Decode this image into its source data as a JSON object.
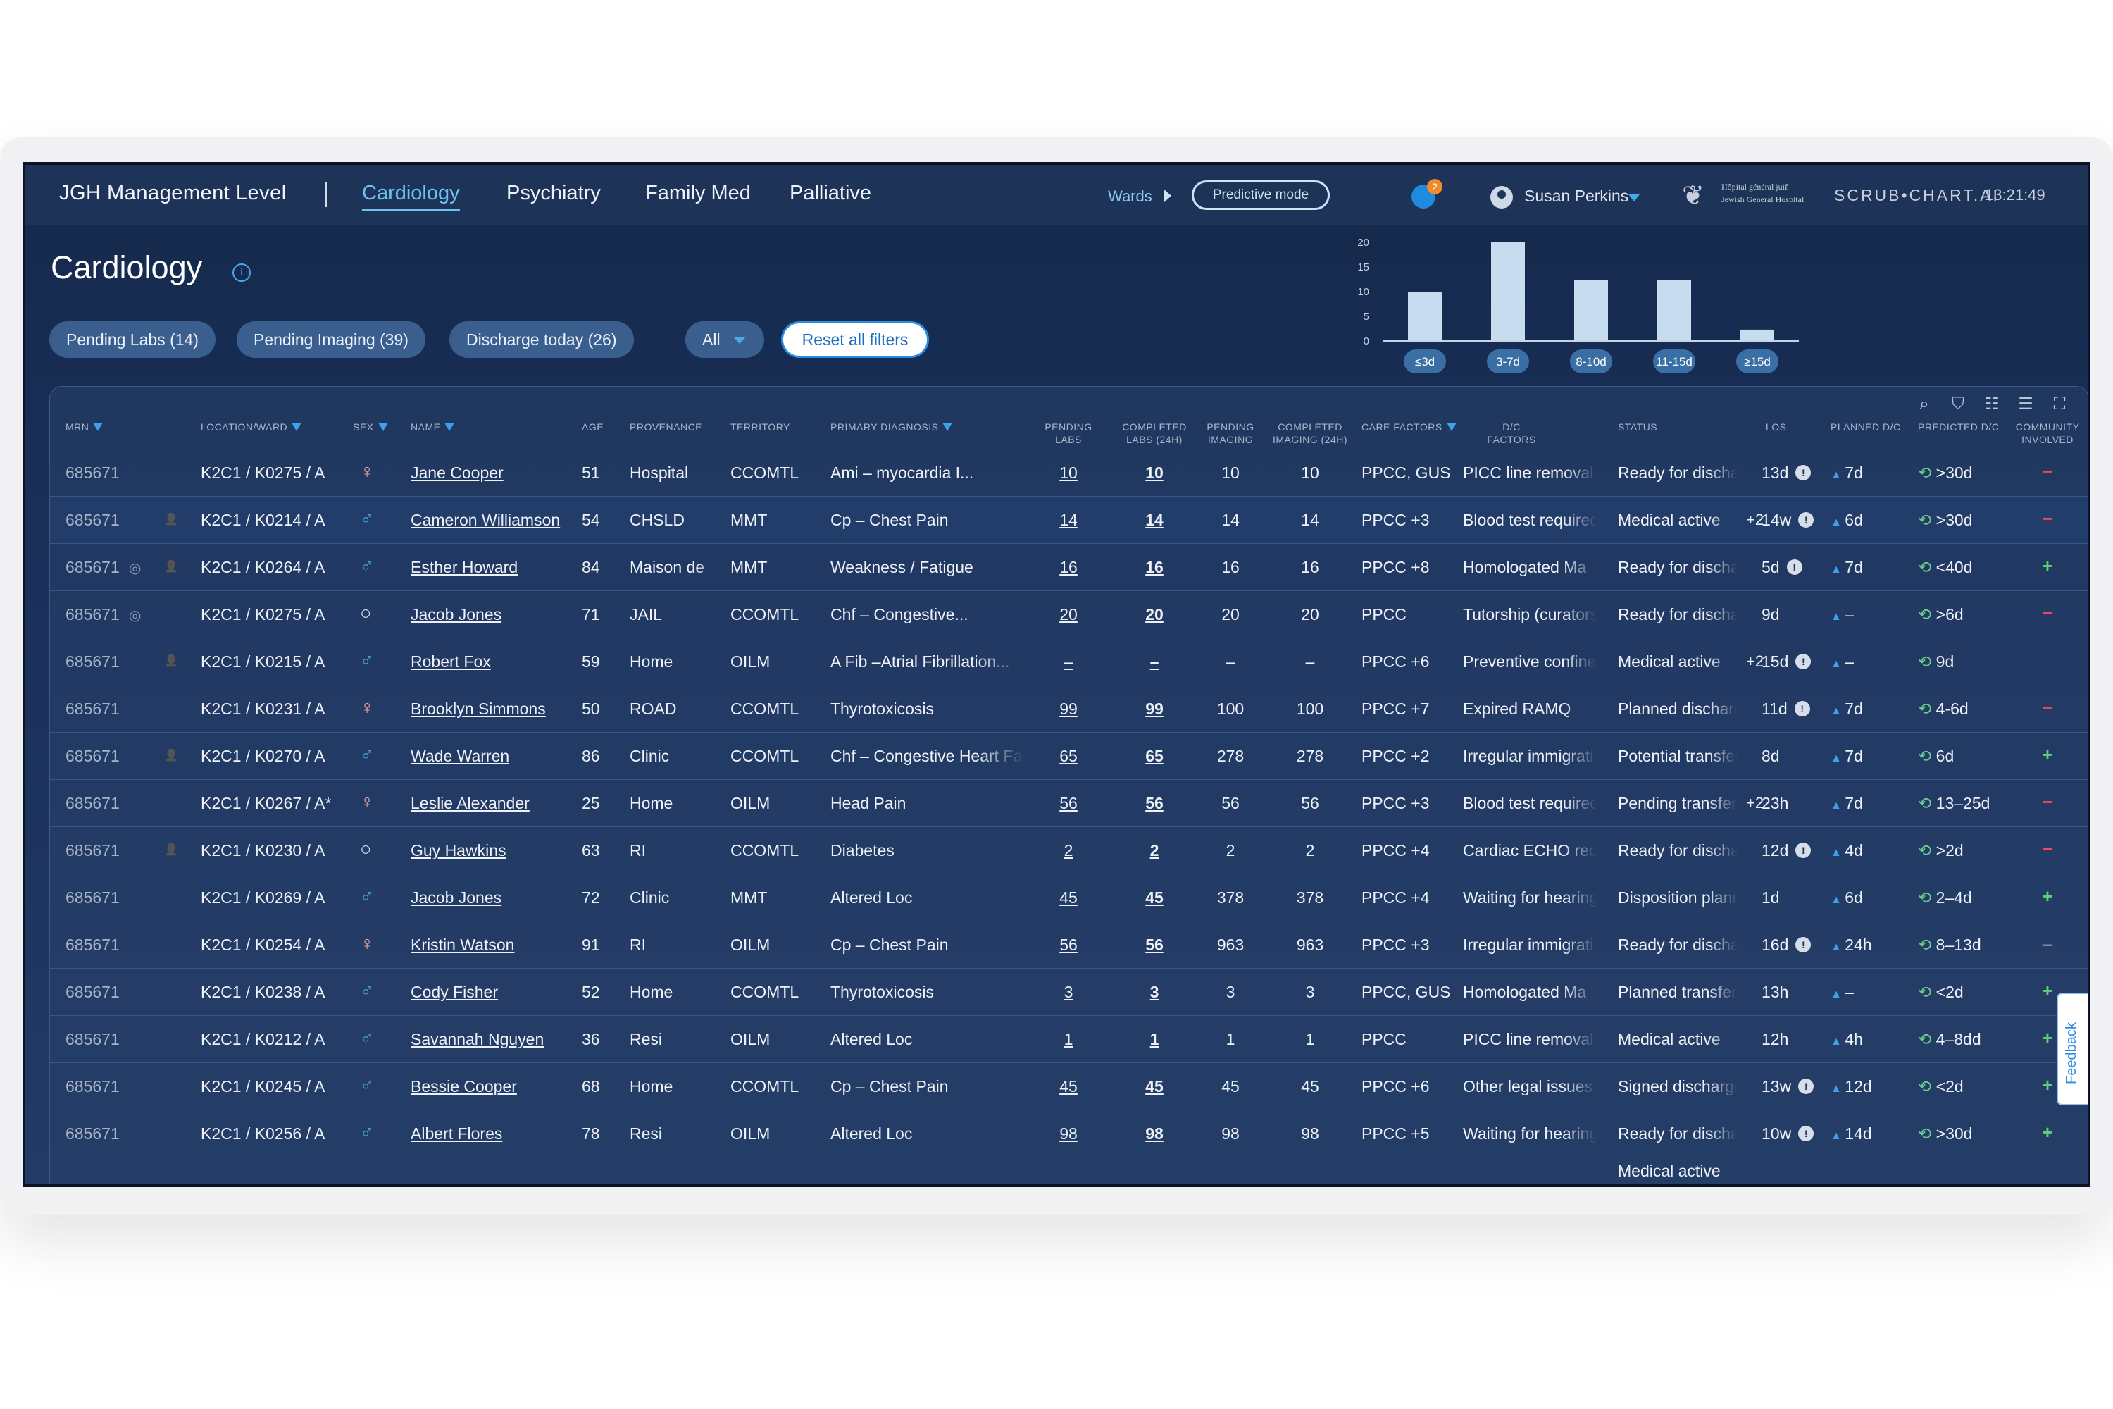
{
  "nav": {
    "brand": "JGH Management Level",
    "tabs": [
      "Cardiology",
      "Psychiatry",
      "Family Med",
      "Palliative"
    ],
    "active_tab": "Cardiology",
    "wards_label": "Wards",
    "predictive_label": "Predictive mode",
    "notifications_count": "2",
    "user_name": "Susan Perkins",
    "hospital_line1": "Hôpital général juif",
    "hospital_line2": "Jewish General Hospital",
    "product": "SCRUB•CHART.AI",
    "time": "13:21:49"
  },
  "page": {
    "title": "Cardiology",
    "filters": {
      "pending_labs": "Pending Labs  (14)",
      "pending_imaging": "Pending Imaging (39)",
      "discharge_today": "Discharge today  (26)",
      "all": "All",
      "reset": "Reset all filters"
    }
  },
  "chart_data": {
    "type": "bar",
    "categories": [
      "≤3d",
      "3-7d",
      "8-10d",
      "11-15d",
      "≥15d"
    ],
    "values": [
      10,
      20,
      12.3,
      12.3,
      2.3
    ],
    "yticks": [
      "20",
      "15",
      "10",
      "5",
      "0"
    ],
    "ylim": [
      0,
      20
    ]
  },
  "table": {
    "headers": {
      "mrn": "MRN",
      "location": "LOCATION/WARD",
      "sex": "SEX",
      "name": "NAME",
      "age": "AGE",
      "provenance": "PROVENANCE",
      "territory": "TERRITORY",
      "diagnosis": "PRIMARY DIAGNOSIS",
      "pending_labs": "PENDING LABS",
      "completed_labs": "COMPLETED LABS (24H)",
      "pending_imaging": "PENDING IMAGING",
      "completed_imaging": "COMPLETED IMAGING (24H)",
      "care_factors": "CARE FACTORS",
      "dc_factors": "D/C FACTORS",
      "status": "STATUS",
      "los": "LOS",
      "planned_dc": "PLANNED D/C",
      "predicted_dc": "PREDICTED D/C",
      "community": "COMMUNITY INVOLVED"
    },
    "rows": [
      {
        "mrn": "685671",
        "icons": "",
        "location": "K2C1 / K0275 / A",
        "sex": "♀",
        "name": "Jane Cooper",
        "age": "51",
        "provenance": "Hospital",
        "territory": "CCOMTL",
        "diagnosis": "Ami – myocardia I...",
        "pending_labs": "10",
        "completed_labs": "10",
        "pending_imaging": "10",
        "completed_imaging": "10",
        "care_factors": "PPCC, GUS",
        "dc_factors": "PICC line removal",
        "status": "Ready for discharge",
        "status_extra": "",
        "los": "13d",
        "los_warn": true,
        "planned_dc": "7d",
        "predicted_dc": ">30d",
        "community": "−"
      },
      {
        "mrn": "685671",
        "icons": "p",
        "location": "K2C1 / K0214 / A",
        "sex": "♂",
        "name": "Cameron Williamson",
        "age": "54",
        "provenance": "CHSLD",
        "territory": "MMT",
        "diagnosis": "Cp – Chest Pain",
        "pending_labs": "14",
        "completed_labs": "14",
        "pending_imaging": "14",
        "completed_imaging": "14",
        "care_factors": "PPCC +3",
        "dc_factors": "Blood test required",
        "status": "Medical active",
        "status_extra": "+2",
        "los": "14w",
        "los_warn": true,
        "planned_dc": "6d",
        "predicted_dc": ">30d",
        "community": "−"
      },
      {
        "mrn": "685671",
        "icons": "tp",
        "location": "K2C1 / K0264 / A",
        "sex": "♂",
        "name": "Esther Howard",
        "age": "84",
        "provenance": "Maison de",
        "territory": "MMT",
        "diagnosis": "Weakness / Fatigue",
        "pending_labs": "16",
        "completed_labs": "16",
        "pending_imaging": "16",
        "completed_imaging": "16",
        "care_factors": "PPCC +8",
        "dc_factors": "Homologated Ma",
        "status": "Ready for discharge",
        "status_extra": "",
        "los": "5d",
        "los_warn": true,
        "planned_dc": "7d",
        "predicted_dc": "<40d",
        "community": "+"
      },
      {
        "mrn": "685671",
        "icons": "t",
        "location": "K2C1 / K0275 / A",
        "sex": "○",
        "name": "Jacob Jones",
        "age": "71",
        "provenance": "JAIL",
        "territory": "CCOMTL",
        "diagnosis": "Chf – Congestive...",
        "pending_labs": "20",
        "completed_labs": "20",
        "pending_imaging": "20",
        "completed_imaging": "20",
        "care_factors": "PPCC",
        "dc_factors": "Tutorship (curators",
        "status": "Ready for discharge",
        "status_extra": "",
        "los": "9d",
        "los_warn": false,
        "planned_dc": "–",
        "predicted_dc": ">6d",
        "community": "−"
      },
      {
        "mrn": "685671",
        "icons": "p",
        "location": "K2C1 / K0215 / A",
        "sex": "♂",
        "name": "Robert Fox",
        "age": "59",
        "provenance": "Home",
        "territory": "OILM",
        "diagnosis": "A Fib –Atrial Fibrillation...",
        "pending_labs": "–",
        "completed_labs": "–",
        "pending_imaging": "–",
        "completed_imaging": "–",
        "care_factors": "PPCC +6",
        "dc_factors": "Preventive confine",
        "status": "Medical active",
        "status_extra": "+2",
        "los": "15d",
        "los_warn": true,
        "planned_dc": "–",
        "predicted_dc": "9d",
        "community": ""
      },
      {
        "mrn": "685671",
        "icons": "",
        "location": "K2C1 / K0231 / A",
        "sex": "♀",
        "name": "Brooklyn Simmons",
        "age": "50",
        "provenance": "ROAD",
        "territory": "CCOMTL",
        "diagnosis": "Thyrotoxicosis",
        "pending_labs": "99",
        "completed_labs": "99",
        "pending_imaging": "100",
        "completed_imaging": "100",
        "care_factors": "PPCC +7",
        "dc_factors": "Expired RAMQ",
        "status": "Planned discharge",
        "status_extra": "",
        "los": "11d",
        "los_warn": true,
        "planned_dc": "7d",
        "predicted_dc": "4-6d",
        "community": "−"
      },
      {
        "mrn": "685671",
        "icons": "p",
        "location": "K2C1 / K0270 / A",
        "sex": "♂",
        "name": "Wade Warren",
        "age": "86",
        "provenance": "Clinic",
        "territory": "CCOMTL",
        "diagnosis": "Chf – Congestive Heart Failure",
        "pending_labs": "65",
        "completed_labs": "65",
        "pending_imaging": "278",
        "completed_imaging": "278",
        "care_factors": "PPCC +2",
        "dc_factors": "Irregular immigrati",
        "status": "Potential transfer",
        "status_extra": "",
        "los": "8d",
        "los_warn": false,
        "planned_dc": "7d",
        "predicted_dc": "6d",
        "community": "+"
      },
      {
        "mrn": "685671",
        "icons": "",
        "location": "K2C1 / K0267 / A*",
        "sex": "♀",
        "name": "Leslie Alexander",
        "age": "25",
        "provenance": "Home",
        "territory": "OILM",
        "diagnosis": "Head Pain",
        "pending_labs": "56",
        "completed_labs": "56",
        "pending_imaging": "56",
        "completed_imaging": "56",
        "care_factors": "PPCC +3",
        "dc_factors": "Blood test required",
        "status": "Pending transfer",
        "status_extra": "+2",
        "los": "23h",
        "los_warn": false,
        "planned_dc": "7d",
        "predicted_dc": "13–25d",
        "community": "−"
      },
      {
        "mrn": "685671",
        "icons": "p",
        "location": "K2C1 / K0230 / A",
        "sex": "○",
        "name": "Guy Hawkins",
        "age": "63",
        "provenance": "RI",
        "territory": "CCOMTL",
        "diagnosis": "Diabetes",
        "pending_labs": "2",
        "completed_labs": "2",
        "pending_imaging": "2",
        "completed_imaging": "2",
        "care_factors": "PPCC +4",
        "dc_factors": "Cardiac ECHO requ",
        "status": "Ready for discharge",
        "status_extra": "",
        "los": "12d",
        "los_warn": true,
        "planned_dc": "4d",
        "predicted_dc": ">2d",
        "community": "−"
      },
      {
        "mrn": "685671",
        "icons": "",
        "location": "K2C1 / K0269 / A",
        "sex": "♂",
        "name": "Jacob Jones",
        "age": "72",
        "provenance": "Clinic",
        "territory": "MMT",
        "diagnosis": "Altered Loc",
        "pending_labs": "45",
        "completed_labs": "45",
        "pending_imaging": "378",
        "completed_imaging": "378",
        "care_factors": "PPCC +4",
        "dc_factors": "Waiting for hearing",
        "status": "Disposition planning",
        "status_extra": "",
        "los": "1d",
        "los_warn": false,
        "planned_dc": "6d",
        "predicted_dc": "2–4d",
        "community": "+"
      },
      {
        "mrn": "685671",
        "icons": "",
        "location": "K2C1 / K0254 / A",
        "sex": "♀",
        "name": "Kristin Watson",
        "age": "91",
        "provenance": "RI",
        "territory": "OILM",
        "diagnosis": "Cp – Chest Pain",
        "pending_labs": "56",
        "completed_labs": "56",
        "pending_imaging": "963",
        "completed_imaging": "963",
        "care_factors": "PPCC +3",
        "dc_factors": "Irregular immigrati",
        "status": "Ready for discharge",
        "status_extra": "",
        "los": "16d",
        "los_warn": true,
        "planned_dc": "24h",
        "predicted_dc": "8–13d",
        "community": "–"
      },
      {
        "mrn": "685671",
        "icons": "",
        "location": "K2C1 / K0238 / A",
        "sex": "♂",
        "name": "Cody Fisher",
        "age": "52",
        "provenance": "Home",
        "territory": "CCOMTL",
        "diagnosis": "Thyrotoxicosis",
        "pending_labs": "3",
        "completed_labs": "3",
        "pending_imaging": "3",
        "completed_imaging": "3",
        "care_factors": "PPCC, GUS",
        "dc_factors": "Homologated Ma",
        "status": "Planned transfer",
        "status_extra": "",
        "los": "13h",
        "los_warn": false,
        "planned_dc": "–",
        "predicted_dc": "<2d",
        "community": "+"
      },
      {
        "mrn": "685671",
        "icons": "",
        "location": "K2C1 / K0212 / A",
        "sex": "♂",
        "name": "Savannah Nguyen",
        "age": "36",
        "provenance": "Resi",
        "territory": "OILM",
        "diagnosis": "Altered Loc",
        "pending_labs": "1",
        "completed_labs": "1",
        "pending_imaging": "1",
        "completed_imaging": "1",
        "care_factors": "PPCC",
        "dc_factors": "PICC line removal",
        "status": "Medical active",
        "status_extra": "",
        "los": "12h",
        "los_warn": false,
        "planned_dc": "4h",
        "predicted_dc": "4–8dd",
        "community": "+"
      },
      {
        "mrn": "685671",
        "icons": "",
        "location": "K2C1 / K0245 / A",
        "sex": "♂",
        "name": "Bessie Cooper",
        "age": "68",
        "provenance": "Home",
        "territory": "CCOMTL",
        "diagnosis": "Cp – Chest Pain",
        "pending_labs": "45",
        "completed_labs": "45",
        "pending_imaging": "45",
        "completed_imaging": "45",
        "care_factors": "PPCC +6",
        "dc_factors": "Other legal issues",
        "status": "Signed discharge",
        "status_extra": "",
        "los": "13w",
        "los_warn": true,
        "planned_dc": "12d",
        "predicted_dc": "<2d",
        "community": "+"
      },
      {
        "mrn": "685671",
        "icons": "",
        "location": "K2C1 / K0256 / A",
        "sex": "♂",
        "name": "Albert Flores",
        "age": "78",
        "provenance": "Resi",
        "territory": "OILM",
        "diagnosis": "Altered Loc",
        "pending_labs": "98",
        "completed_labs": "98",
        "pending_imaging": "98",
        "completed_imaging": "98",
        "care_factors": "PPCC +5",
        "dc_factors": "Waiting for hearing",
        "status": "Ready for discharge",
        "status_extra": "",
        "los": "10w",
        "los_warn": true,
        "planned_dc": "14d",
        "predicted_dc": ">30d",
        "community": "+"
      }
    ],
    "partial_row_status": "Medical active"
  },
  "feedback_label": "Feedback",
  "colors": {
    "accent": "#3ca0ec",
    "plus": "#5fd07a",
    "minus": "#f0475e",
    "background": "#1a305a"
  }
}
